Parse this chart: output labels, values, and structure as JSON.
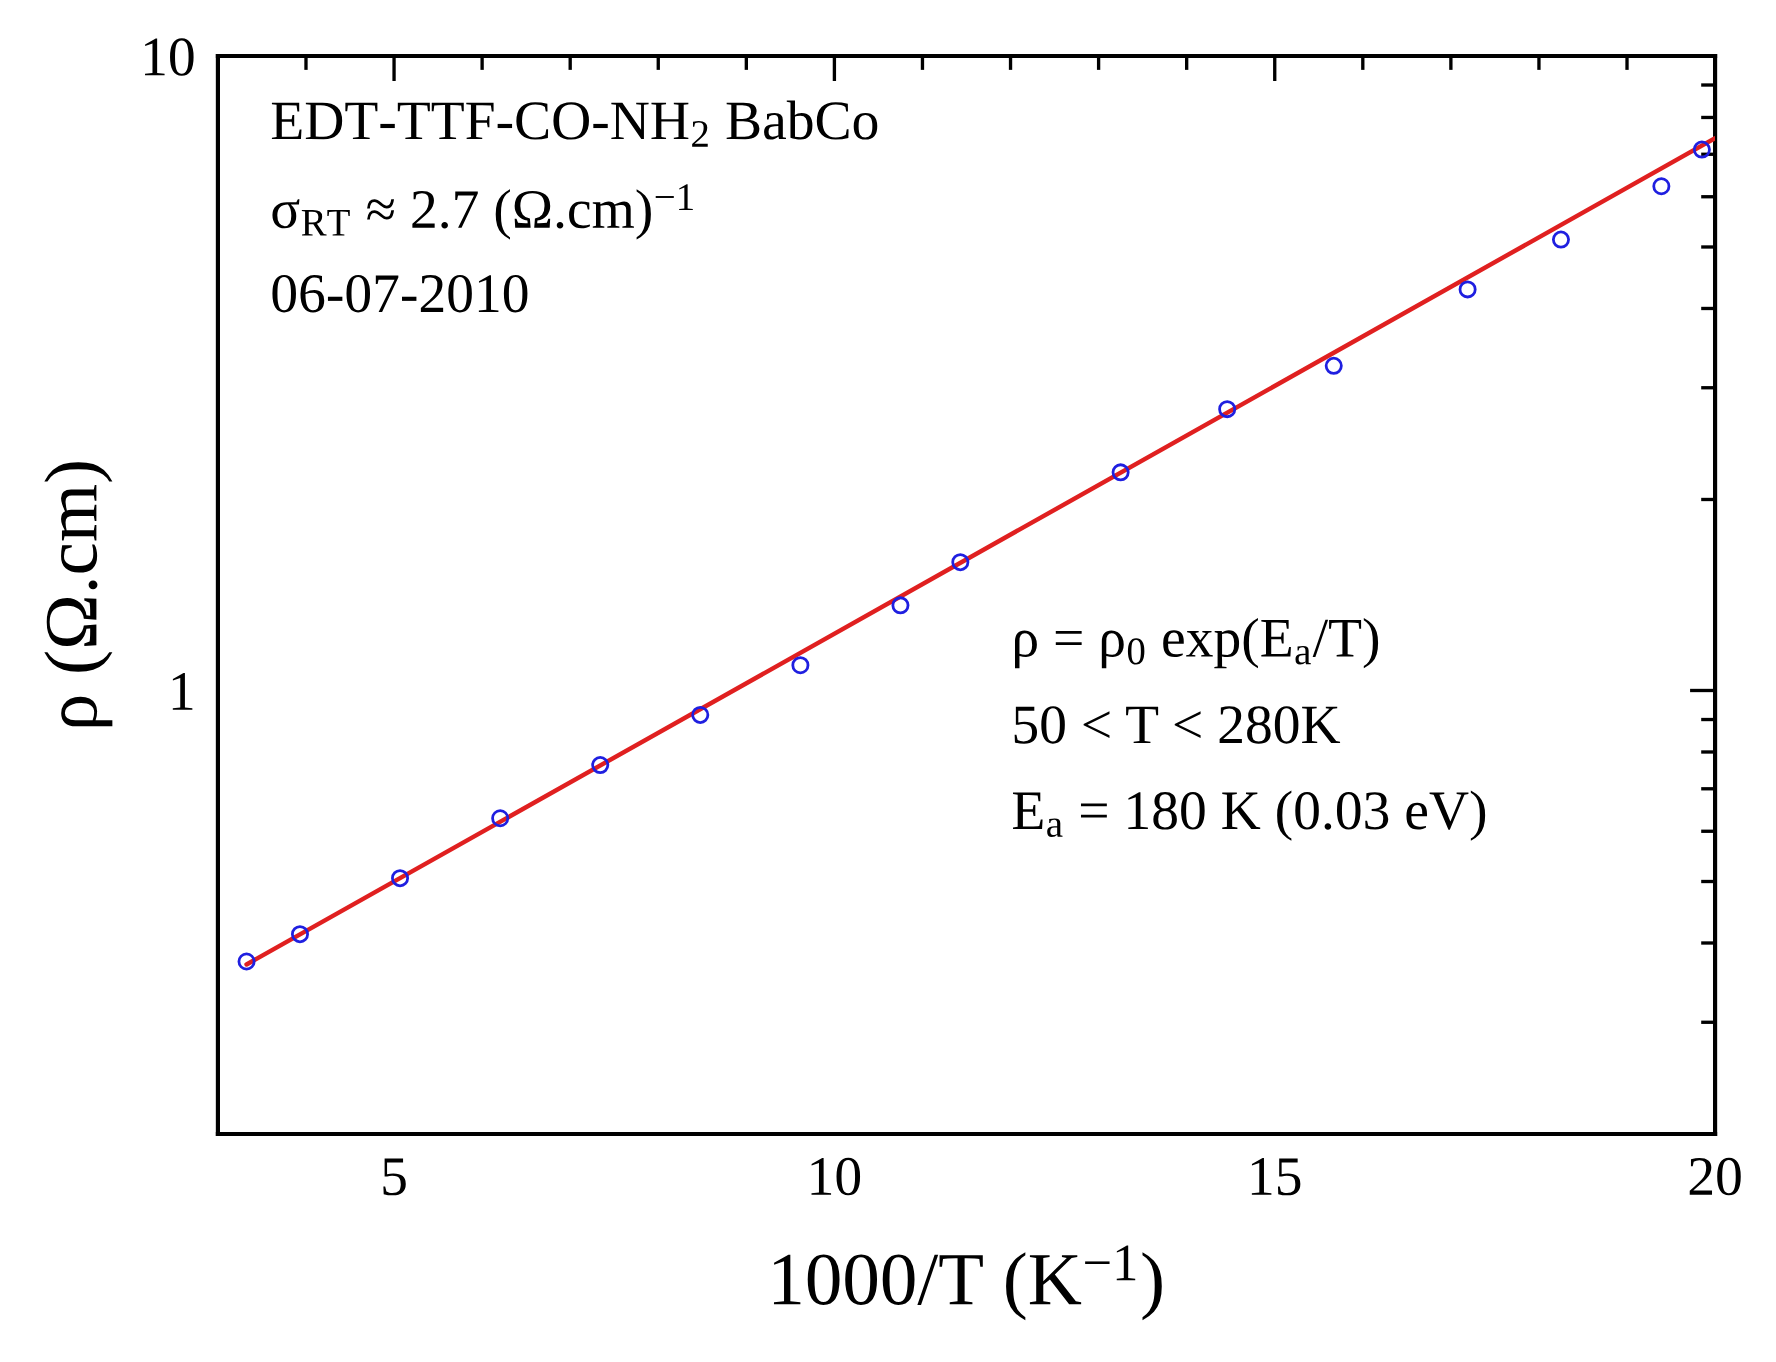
{
  "chart_data": {
    "type": "scatter",
    "xlabel": "1000/T (K$^{−1}$)",
    "ylabel": "ρ (Ω.cm)",
    "xlim": [
      3,
      20
    ],
    "ylim": [
      0.2,
      10
    ],
    "xticks": [
      5,
      10,
      15,
      20
    ],
    "yticks": [
      1,
      10
    ],
    "log": "y",
    "grid": false,
    "series": [
      {
        "marker": "circle",
        "color": "#1f1fe0",
        "x": [
          3.325,
          3.932,
          5.068,
          6.205,
          7.341,
          8.477,
          9.614,
          10.75,
          11.43,
          13.25,
          14.46,
          15.67,
          17.19,
          18.25,
          19.39,
          19.85
        ],
        "values": [
          0.374,
          0.413,
          0.506,
          0.629,
          0.763,
          0.915,
          1.096,
          1.362,
          1.593,
          2.207,
          2.776,
          3.249,
          4.287,
          5.136,
          6.233,
          7.12
        ]
      },
      {
        "type": "line",
        "marker": "none",
        "line_style": "solid",
        "color": "#e02020",
        "x": [
          3.325,
          20.0
        ],
        "values": [
          0.37,
          7.42
        ]
      }
    ],
    "annotations": [
      "EDT-TTF-CO-NH$_{2}$ BabCo",
      "σ$_{RT}$ ≈ 2.7 (Ω.cm)$^{−1}$",
      "06-07-2010",
      "ρ = ρ$_{0}$ exp(E$_{a}$/T)",
      "50 < T < 280K",
      "E$_{a}$ = 180 K (0.03 eV)"
    ]
  }
}
